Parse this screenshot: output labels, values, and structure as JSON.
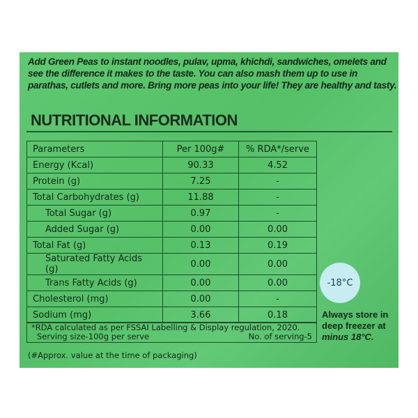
{
  "intro": "Add Green Peas to instant noodles, pulav, upma, khichdi, sandwiches, omelets and see the difference it makes to the taste. You can also mash them up to use in parathas, cutlets and more. Bring more peas into your life! They are healthy and tasty.",
  "title": "NUTRITIONAL INFORMATION",
  "table": {
    "headers": [
      "Parameters",
      "Per 100g#",
      "% RDA*/serve"
    ],
    "rows": [
      [
        "Energy (Kcal)",
        "90.33",
        "4.52"
      ],
      [
        "Protein (g)",
        "7.25",
        "-"
      ],
      [
        "Total Carbohydrates (g)",
        "11.88",
        "-"
      ],
      [
        "Total Sugar (g)",
        "0.97",
        "-"
      ],
      [
        "Added Sugar (g)",
        "0.00",
        "0.00"
      ],
      [
        "Total Fat (g)",
        "0.13",
        "0.19"
      ],
      [
        "Saturated Fatty Acids (g)",
        "0.00",
        "0.00"
      ],
      [
        "Trans Fatty Acids (g)",
        "0.00",
        "0.00"
      ],
      [
        "Cholesterol (mg)",
        "0.00",
        "-"
      ],
      [
        "Sodium (mg)",
        "3.66",
        "0.18"
      ]
    ]
  },
  "footnote": {
    "rda": "*RDA calculated as per FSSAI Labelling & Display regulation, 2020.",
    "serving_size": "Serving size-100g per serve",
    "servings": "No. of serving-5"
  },
  "approx": "(#Approx. value at the time of packaging)",
  "badge": "-18°C",
  "storage": [
    "Always store in",
    "deep freezer at",
    "minus 18°C."
  ]
}
